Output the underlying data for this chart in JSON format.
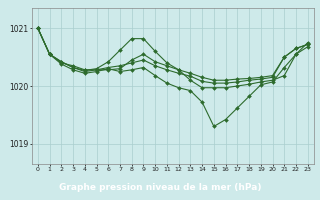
{
  "background_color": "#ceeaea",
  "grid_color": "#aacece",
  "line_color": "#2d6b2d",
  "xlabel": "Graphe pression niveau de la mer (hPa)",
  "ylim": [
    1018.65,
    1021.35
  ],
  "yticks": [
    1019,
    1020,
    1021
  ],
  "xlim": [
    -0.5,
    23.5
  ],
  "xticks": [
    0,
    1,
    2,
    3,
    4,
    5,
    6,
    7,
    8,
    9,
    10,
    11,
    12,
    13,
    14,
    15,
    16,
    17,
    18,
    19,
    20,
    21,
    22,
    23
  ],
  "xlabel_bg": "#2d6b2d",
  "xlabel_color": "#ffffff",
  "series1": [
    1021.0,
    1020.55,
    1020.4,
    1020.35,
    1020.28,
    1020.28,
    1020.28,
    1020.3,
    1020.45,
    1020.55,
    1020.42,
    1020.35,
    1020.28,
    1020.22,
    1020.15,
    1020.1,
    1020.1,
    1020.12,
    1020.13,
    1020.15,
    1020.18,
    1020.5,
    1020.65,
    1020.72
  ],
  "series2": [
    1021.0,
    1020.55,
    1020.42,
    1020.32,
    1020.27,
    1020.3,
    1020.42,
    1020.62,
    1020.82,
    1020.82,
    1020.6,
    1020.4,
    1020.28,
    1020.1,
    1019.97,
    1019.97,
    1019.97,
    1020.0,
    1020.03,
    1020.07,
    1020.1,
    1020.18,
    1020.55,
    1020.75
  ],
  "series3": [
    1021.0,
    1020.55,
    1020.38,
    1020.28,
    1020.22,
    1020.25,
    1020.3,
    1020.25,
    1020.28,
    1020.32,
    1020.18,
    1020.05,
    1019.97,
    1019.92,
    1019.72,
    1019.3,
    1019.42,
    1019.62,
    1019.82,
    1020.02,
    1020.07,
    1020.32,
    1020.55,
    1020.68
  ],
  "series4": [
    1021.0,
    1020.55,
    1020.42,
    1020.32,
    1020.25,
    1020.28,
    1020.32,
    1020.35,
    1020.4,
    1020.45,
    1020.35,
    1020.28,
    1020.22,
    1020.17,
    1020.08,
    1020.05,
    1020.05,
    1020.07,
    1020.1,
    1020.12,
    1020.15,
    1020.5,
    1020.65,
    1020.72
  ]
}
